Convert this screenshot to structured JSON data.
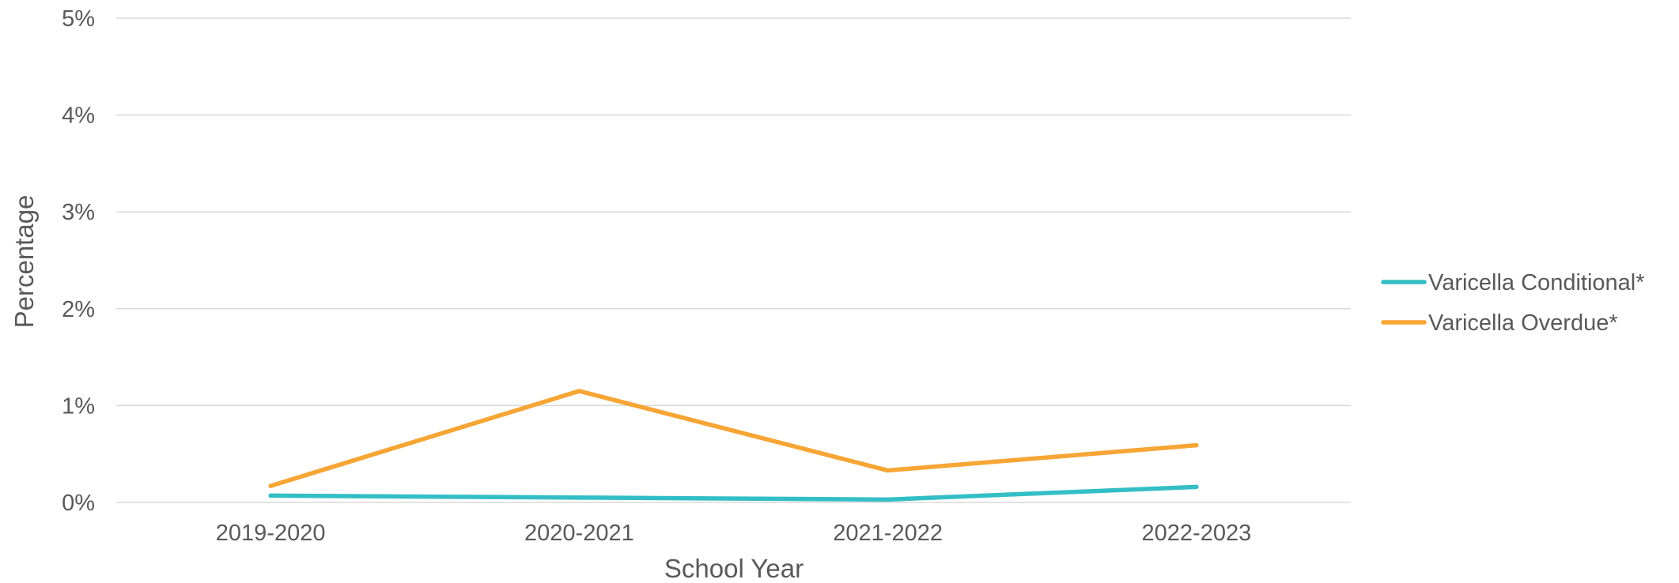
{
  "chart_data": {
    "type": "line",
    "title": "",
    "xlabel": "School Year",
    "ylabel": "Percentage",
    "categories": [
      "2019-2020",
      "2020-2021",
      "2021-2022",
      "2022-2023"
    ],
    "ylim": [
      0,
      5
    ],
    "yticks": [
      "0%",
      "1%",
      "2%",
      "3%",
      "4%",
      "5%"
    ],
    "grid": true,
    "legend_position": "right",
    "series": [
      {
        "name": "Varicella Conditional*",
        "color": "#33BEC6",
        "values": [
          0.07,
          0.05,
          0.03,
          0.16
        ]
      },
      {
        "name": "Varicella Overdue*",
        "color": "#F7A535",
        "values": [
          0.17,
          1.15,
          0.33,
          0.59
        ]
      }
    ]
  }
}
